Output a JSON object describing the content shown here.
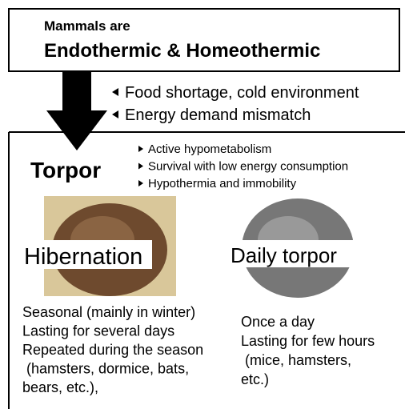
{
  "header": {
    "line1": "Mammals are",
    "line2": "Endothermic & Homeothermic"
  },
  "triggers": [
    "Food shortage, cold environment",
    "Energy demand mismatch"
  ],
  "torpor": {
    "title": "Torpor",
    "features": [
      "Active hypometabolism",
      "Survival with low energy consumption",
      "Hypothermia and immobility"
    ]
  },
  "hibernation": {
    "label": "Hibernation",
    "details": [
      "Seasonal (mainly in winter)",
      "Lasting for several days",
      "Repeated during the season",
      " (hamsters, dormice, bats,",
      "bears, etc.),"
    ]
  },
  "daily_torpor": {
    "label": "Daily torpor",
    "details": [
      "Once a day",
      "Lasting for few hours",
      " (mice, hamsters,",
      "etc.)"
    ]
  }
}
